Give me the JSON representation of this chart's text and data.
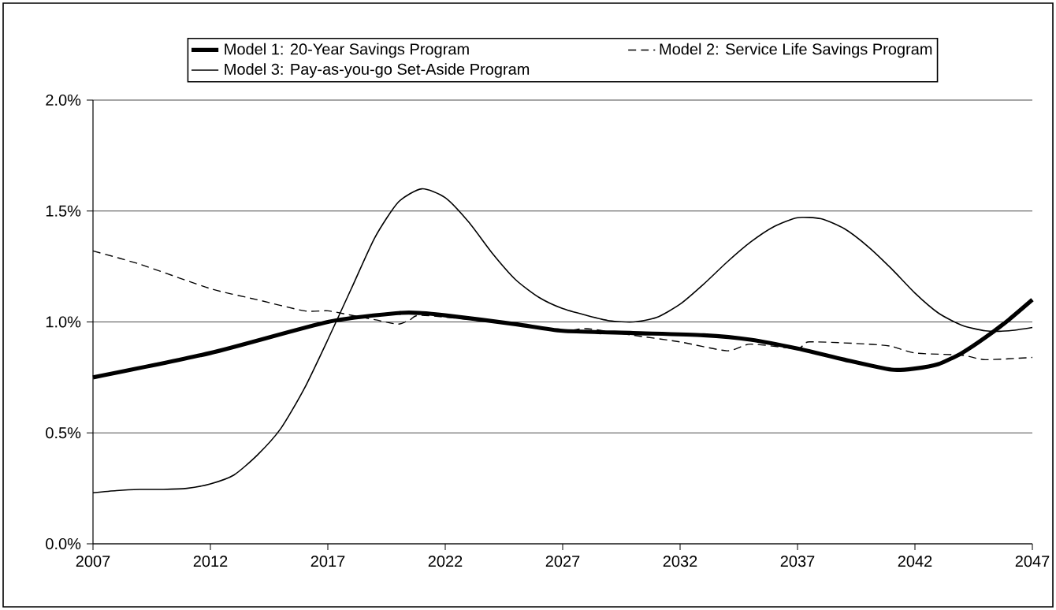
{
  "chart_data": {
    "type": "line",
    "xlim": [
      2007,
      2047
    ],
    "xticks": [
      2007,
      2012,
      2017,
      2022,
      2027,
      2032,
      2037,
      2042,
      2047
    ],
    "ylim": [
      0,
      2.0
    ],
    "yticks": [
      {
        "value": 0,
        "label": "0.0%"
      },
      {
        "value": 0.5,
        "label": "0.5%"
      },
      {
        "value": 1.0,
        "label": "1.0%"
      },
      {
        "value": 1.5,
        "label": "1.5%"
      },
      {
        "value": 2.0,
        "label": "2.0%"
      }
    ],
    "grid": "y",
    "legend": "top",
    "series": [
      {
        "name": "Model 1: 20-Year Savings Program",
        "color": "#000000",
        "line_style": "solid",
        "x": [
          2007,
          2012,
          2017,
          2020,
          2021,
          2022,
          2025,
          2027,
          2030,
          2033,
          2035,
          2037,
          2039,
          2041,
          2042,
          2043,
          2044,
          2045,
          2046,
          2047
        ],
        "values": [
          0.75,
          0.86,
          1.0,
          1.04,
          1.04,
          1.03,
          0.99,
          0.96,
          0.95,
          0.94,
          0.92,
          0.88,
          0.83,
          0.785,
          0.79,
          0.81,
          0.86,
          0.93,
          1.01,
          1.1
        ]
      },
      {
        "name": "Model 2: Service Life Savings Program",
        "color": "#000000",
        "line_style": "dashed",
        "x": [
          2007,
          2009,
          2012,
          2014,
          2016,
          2017,
          2018,
          2019,
          2020,
          2020.5,
          2021,
          2024,
          2027,
          2028,
          2030,
          2032,
          2034,
          2035,
          2037,
          2037.5,
          2040,
          2041,
          2042,
          2044,
          2045,
          2047
        ],
        "values": [
          1.32,
          1.26,
          1.15,
          1.1,
          1.05,
          1.05,
          1.03,
          1.01,
          0.99,
          1.01,
          1.03,
          1.0,
          0.96,
          0.97,
          0.94,
          0.91,
          0.87,
          0.9,
          0.88,
          0.91,
          0.9,
          0.89,
          0.86,
          0.85,
          0.83,
          0.84
        ]
      },
      {
        "name": "Model 3: Pay-as-you-go Set-Aside Program",
        "color": "#000000",
        "line_style": "solid",
        "x": [
          2007,
          2008,
          2009,
          2010,
          2011,
          2012,
          2013,
          2014,
          2015,
          2016,
          2017,
          2018,
          2019,
          2020,
          2021,
          2022,
          2023,
          2024,
          2025,
          2026,
          2027,
          2028,
          2029,
          2030,
          2031,
          2032,
          2033,
          2034,
          2035,
          2036,
          2037,
          2038,
          2039,
          2040,
          2041,
          2042,
          2043,
          2044,
          2045,
          2046,
          2047
        ],
        "values": [
          0.23,
          0.24,
          0.245,
          0.245,
          0.25,
          0.27,
          0.31,
          0.4,
          0.52,
          0.7,
          0.92,
          1.15,
          1.38,
          1.54,
          1.6,
          1.56,
          1.45,
          1.31,
          1.19,
          1.11,
          1.06,
          1.03,
          1.005,
          1.0,
          1.02,
          1.08,
          1.17,
          1.27,
          1.36,
          1.43,
          1.47,
          1.465,
          1.42,
          1.34,
          1.24,
          1.13,
          1.04,
          0.985,
          0.96,
          0.96,
          0.975
        ]
      }
    ]
  }
}
